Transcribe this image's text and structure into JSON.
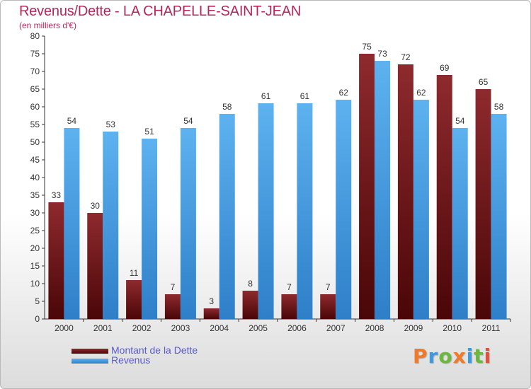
{
  "chart_data": {
    "type": "bar",
    "title": "Revenus/Dette - LA CHAPELLE-SAINT-JEAN",
    "subtitle": "(en milliers d'€)",
    "categories": [
      "2000",
      "2001",
      "2002",
      "2003",
      "2004",
      "2005",
      "2006",
      "2007",
      "2008",
      "2009",
      "2010",
      "2011"
    ],
    "series": [
      {
        "name": "Montant de la Dette",
        "values": [
          33,
          30,
          11,
          7,
          3,
          8,
          7,
          7,
          75,
          72,
          69,
          65
        ],
        "color": "#7b1f22"
      },
      {
        "name": "Revenus",
        "values": [
          54,
          53,
          51,
          54,
          58,
          61,
          61,
          62,
          73,
          62,
          54,
          58
        ],
        "color": "#4aa3e6"
      }
    ],
    "ylim": [
      0,
      80
    ],
    "yticks": [
      0,
      5,
      10,
      15,
      20,
      25,
      30,
      35,
      40,
      45,
      50,
      55,
      60,
      65,
      70,
      75,
      80
    ],
    "grid": false,
    "legend_position": "bottom-left"
  },
  "logo": {
    "text": "Proxiti",
    "colors": [
      "#f07a2a",
      "#3a9be0",
      "#6ab93c",
      "#f07a2a",
      "#3a9be0",
      "#6ab93c",
      "#e2503a"
    ]
  }
}
